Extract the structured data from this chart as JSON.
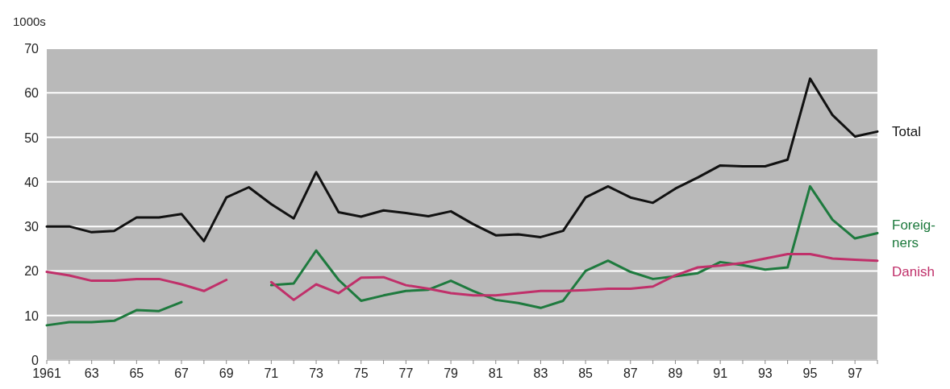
{
  "chart_data": {
    "type": "line",
    "ylabel": "1000s",
    "x": [
      1961,
      1962,
      1963,
      1964,
      1965,
      1966,
      1967,
      1968,
      1969,
      1970,
      1971,
      1972,
      1973,
      1974,
      1975,
      1976,
      1977,
      1978,
      1979,
      1980,
      1981,
      1982,
      1983,
      1984,
      1985,
      1986,
      1987,
      1988,
      1989,
      1990,
      1991,
      1992,
      1993,
      1994,
      1995,
      1996,
      1997,
      1998
    ],
    "series": [
      {
        "name": "Total",
        "color": "#111111",
        "values": [
          30,
          30,
          28.7,
          29,
          32,
          32,
          32.8,
          26.7,
          36.5,
          38.8,
          35,
          31.8,
          42.2,
          33.2,
          32.2,
          33.6,
          33,
          32.3,
          33.4,
          30.5,
          28,
          28.2,
          27.6,
          29,
          36.5,
          39,
          36.5,
          35.3,
          38.5,
          41,
          43.7,
          43.5,
          43.5,
          45,
          63.2,
          55,
          50.2,
          51.3
        ]
      },
      {
        "name": "Foreig-\nners",
        "color": "#1e7a3e",
        "values": [
          7.8,
          8.5,
          8.5,
          8.8,
          11.2,
          11,
          13,
          null,
          null,
          null,
          16.8,
          17.2,
          24.6,
          18,
          13.3,
          14.5,
          15.5,
          15.8,
          17.8,
          15.5,
          13.5,
          12.8,
          11.7,
          13.3,
          20,
          22.3,
          19.8,
          18.2,
          18.8,
          19.5,
          22,
          21.3,
          20.3,
          20.8,
          39,
          31.5,
          27.3,
          28.5
        ]
      },
      {
        "name": "Danish",
        "color": "#c0306a",
        "values": [
          19.8,
          19,
          17.8,
          17.8,
          18.2,
          18.2,
          17,
          15.5,
          18,
          null,
          17.5,
          13.5,
          17,
          15,
          18.5,
          18.6,
          16.8,
          16,
          15,
          14.5,
          14.5,
          15,
          15.5,
          15.5,
          15.7,
          16,
          16,
          16.5,
          19,
          20.8,
          21.2,
          21.8,
          22.8,
          23.8,
          23.8,
          22.8,
          22.5,
          22.3
        ]
      }
    ],
    "xlim": [
      1961,
      1998
    ],
    "xticks": [
      {
        "value": 1961,
        "label": "1961"
      },
      {
        "value": 1962,
        "label": null
      },
      {
        "value": 1963,
        "label": "63"
      },
      {
        "value": 1964,
        "label": null
      },
      {
        "value": 1965,
        "label": "65"
      },
      {
        "value": 1966,
        "label": null
      },
      {
        "value": 1967,
        "label": "67"
      },
      {
        "value": 1968,
        "label": null
      },
      {
        "value": 1969,
        "label": "69"
      },
      {
        "value": 1970,
        "label": null
      },
      {
        "value": 1971,
        "label": "71"
      },
      {
        "value": 1972,
        "label": null
      },
      {
        "value": 1973,
        "label": "73"
      },
      {
        "value": 1974,
        "label": null
      },
      {
        "value": 1975,
        "label": "75"
      },
      {
        "value": 1976,
        "label": null
      },
      {
        "value": 1977,
        "label": "77"
      },
      {
        "value": 1978,
        "label": null
      },
      {
        "value": 1979,
        "label": "79"
      },
      {
        "value": 1980,
        "label": null
      },
      {
        "value": 1981,
        "label": "81"
      },
      {
        "value": 1982,
        "label": null
      },
      {
        "value": 1983,
        "label": "83"
      },
      {
        "value": 1984,
        "label": null
      },
      {
        "value": 1985,
        "label": "85"
      },
      {
        "value": 1986,
        "label": null
      },
      {
        "value": 1987,
        "label": "87"
      },
      {
        "value": 1988,
        "label": null
      },
      {
        "value": 1989,
        "label": "89"
      },
      {
        "value": 1990,
        "label": null
      },
      {
        "value": 1991,
        "label": "91"
      },
      {
        "value": 1992,
        "label": null
      },
      {
        "value": 1993,
        "label": "93"
      },
      {
        "value": 1994,
        "label": null
      },
      {
        "value": 1995,
        "label": "95"
      },
      {
        "value": 1996,
        "label": null
      },
      {
        "value": 1997,
        "label": "97"
      },
      {
        "value": 1998,
        "label": null
      }
    ],
    "ylim": [
      0,
      70
    ],
    "yticks": [
      0,
      10,
      20,
      30,
      40,
      50,
      60,
      70
    ],
    "grid": "y"
  }
}
